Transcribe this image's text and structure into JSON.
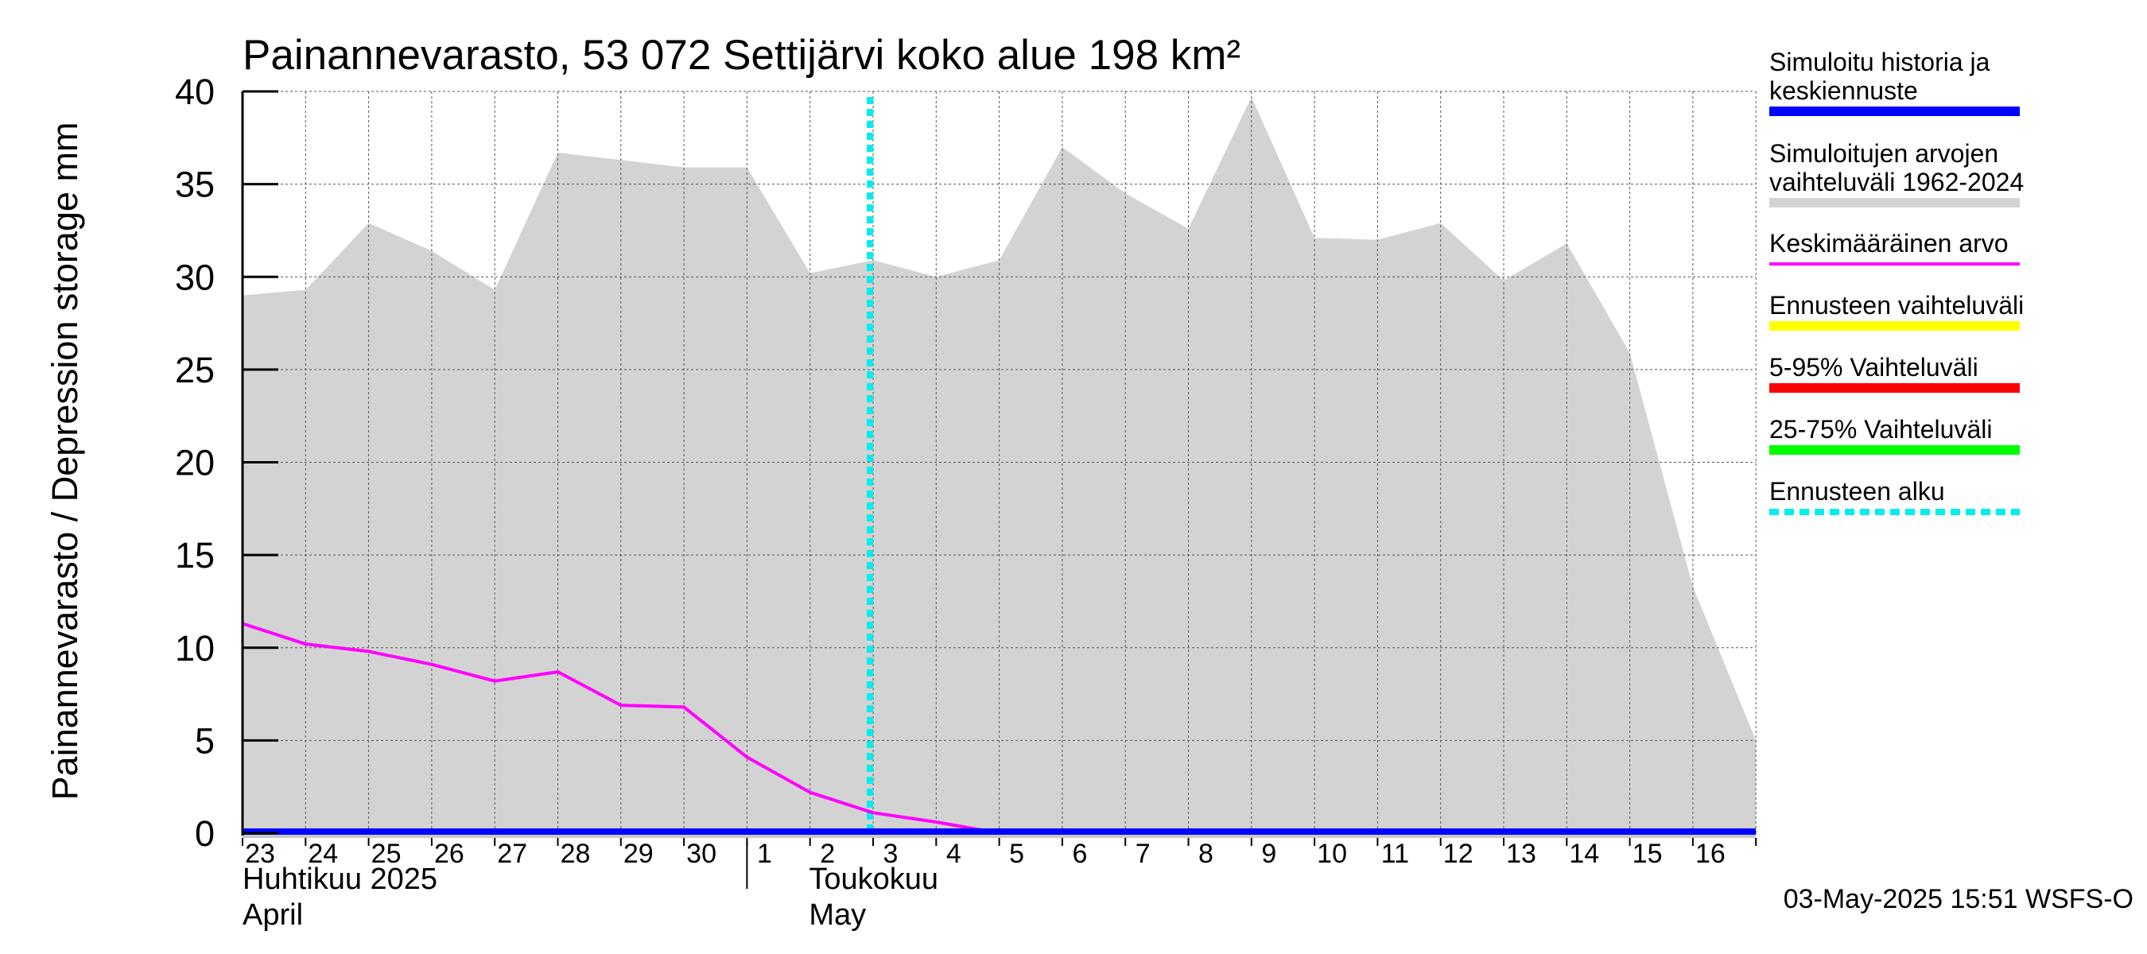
{
  "chart_data": {
    "type": "area",
    "title": "Painannevarasto, 53 072 Settijärvi koko alue 198 km²",
    "ylabel": "Painannevarasto / Depression storage    mm",
    "ylim": [
      0,
      40
    ],
    "yticks": [
      "0",
      "5",
      "10",
      "15",
      "20",
      "25",
      "30",
      "35",
      "40"
    ],
    "x_day_labels": [
      "23",
      "24",
      "25",
      "26",
      "27",
      "28",
      "29",
      "30",
      "1",
      "2",
      "3",
      "4",
      "5",
      "6",
      "7",
      "8",
      "9",
      "10",
      "11",
      "12",
      "13",
      "14",
      "15",
      "16"
    ],
    "month_labels": [
      {
        "fi": "Huhtikuu  2025",
        "en": "April"
      },
      {
        "fi": "Toukokuu",
        "en": "May"
      }
    ],
    "footer": "03-May-2025 15:51 WSFS-O",
    "forecast_start": "2025-05-03",
    "grid": true,
    "range_band": {
      "name": "Simuloitujen arvojen vaihteluväli 1962-2024",
      "color": "#d3d3d3",
      "dates": [
        "2025-04-23",
        "2025-04-24",
        "2025-04-25",
        "2025-04-26",
        "2025-04-27",
        "2025-04-28",
        "2025-04-29",
        "2025-04-30",
        "2025-05-01",
        "2025-05-02",
        "2025-05-03",
        "2025-05-04",
        "2025-05-05",
        "2025-05-06",
        "2025-05-07",
        "2025-05-08",
        "2025-05-09",
        "2025-05-10",
        "2025-05-11",
        "2025-05-12",
        "2025-05-13",
        "2025-05-14",
        "2025-05-15",
        "2025-05-16",
        "2025-05-17"
      ],
      "upper": [
        29.0,
        29.3,
        32.9,
        31.4,
        29.3,
        36.7,
        36.3,
        35.9,
        35.9,
        30.2,
        30.9,
        30.0,
        30.9,
        37.0,
        34.5,
        32.6,
        39.7,
        32.1,
        32.0,
        32.9,
        29.8,
        31.8,
        25.9,
        13.3,
        5.0
      ],
      "lower": [
        0,
        0,
        0,
        0,
        0,
        0,
        0,
        0,
        0,
        0,
        0,
        0,
        0,
        0,
        0,
        0,
        0,
        0,
        0,
        0,
        0,
        0,
        0,
        0,
        0
      ]
    },
    "series": [
      {
        "name": "Keskimääräinen arvo",
        "color": "#ff00ff",
        "dates": [
          "2025-04-23",
          "2025-04-24",
          "2025-04-25",
          "2025-04-26",
          "2025-04-27",
          "2025-04-28",
          "2025-04-29",
          "2025-04-30",
          "2025-05-01",
          "2025-05-02",
          "2025-05-03",
          "2025-05-04",
          "2025-05-05",
          "2025-05-06",
          "2025-05-07",
          "2025-05-08",
          "2025-05-09",
          "2025-05-10",
          "2025-05-11",
          "2025-05-12",
          "2025-05-13",
          "2025-05-14",
          "2025-05-15",
          "2025-05-16",
          "2025-05-17"
        ],
        "values": [
          11.3,
          10.2,
          9.8,
          9.1,
          8.2,
          8.7,
          6.9,
          6.8,
          4.1,
          2.2,
          1.1,
          0.6,
          0,
          0,
          0,
          0,
          0,
          0,
          0,
          0,
          0,
          0,
          0,
          0,
          0
        ]
      },
      {
        "name": "Simuloitu historia ja keskiennuste",
        "color": "#0000ff",
        "dates": [
          "2025-04-23",
          "2025-05-17"
        ],
        "values": [
          0,
          0
        ]
      }
    ],
    "legend": {
      "placement": "right",
      "items": [
        {
          "label": "Simuloitu historia ja keskiennuste",
          "color": "#0000ff",
          "style": "thick"
        },
        {
          "label": "Simuloitujen arvojen vaihteluväli 1962-2024",
          "color": "#d3d3d3",
          "style": "thick"
        },
        {
          "label": "Keskimääräinen arvo",
          "color": "#ff00ff",
          "style": "thin"
        },
        {
          "label": "Ennusteen vaihteluväli",
          "color": "#ffff00",
          "style": "thick"
        },
        {
          "label": "5-95% Vaihteluväli",
          "color": "#ff0000",
          "style": "thick"
        },
        {
          "label": "25-75% Vaihteluväli",
          "color": "#00ff00",
          "style": "thick"
        },
        {
          "label": "Ennusteen alku",
          "color": "#00eeee",
          "style": "dotted"
        }
      ]
    }
  }
}
